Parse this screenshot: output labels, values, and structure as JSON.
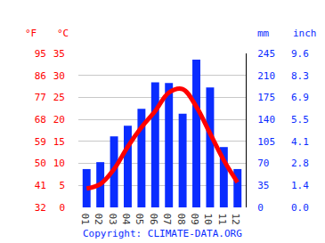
{
  "chart_data": {
    "type": "bar",
    "categories": [
      "01",
      "02",
      "03",
      "04",
      "05",
      "06",
      "07",
      "08",
      "09",
      "10",
      "11",
      "12"
    ],
    "series": [
      {
        "type": "bar",
        "axis": "y2",
        "color": "#0a2cff",
        "values": [
          61,
          72,
          113,
          130,
          157,
          199,
          198,
          149,
          235,
          191,
          96,
          61
        ]
      },
      {
        "type": "line",
        "color": "#ff0000",
        "line_style": "solid",
        "values": [
          4.3,
          5.3,
          8.7,
          13.8,
          18.2,
          21.9,
          26.1,
          26.9,
          22.9,
          16.8,
          10.7,
          5.7
        ]
      }
    ],
    "ylabel": "°C",
    "ylim": [
      0,
      35
    ],
    "yticks": [
      0,
      5,
      10,
      15,
      20,
      25,
      30,
      35
    ],
    "y2label": "mm",
    "y2lim": [
      0,
      245
    ],
    "y2ticks": [
      0,
      35,
      70,
      105,
      140,
      175,
      210,
      245
    ],
    "y3label": "°F",
    "y3lim": [
      32,
      95
    ],
    "y3ticks": [
      32,
      41,
      50,
      59,
      68,
      77,
      86,
      95
    ],
    "y4label": "inch",
    "y4lim": [
      0,
      9.646
    ],
    "y4ticks": [
      {
        "value": 0,
        "label": "0.0"
      },
      {
        "value": 1.378,
        "label": "1.4"
      },
      {
        "value": 2.756,
        "label": "2.8"
      },
      {
        "value": 4.134,
        "label": "4.1"
      },
      {
        "value": 5.512,
        "label": "5.5"
      },
      {
        "value": 6.89,
        "label": "6.9"
      },
      {
        "value": 8.268,
        "label": "8.3"
      },
      {
        "value": 9.646,
        "label": "9.6"
      }
    ],
    "source": "Copyright: CLIMATE-DATA.ORG",
    "grid": true
  }
}
